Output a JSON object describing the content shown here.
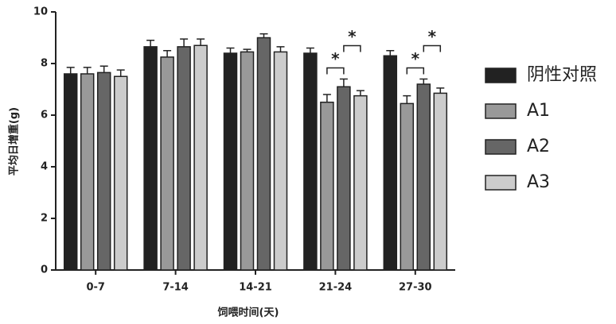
{
  "chart_data": {
    "type": "bar",
    "y_label": "平均日增重(g)",
    "x_label": "饲喂时间(天)",
    "categories": [
      "0-7",
      "7-14",
      "14-21",
      "21-24",
      "27-30"
    ],
    "series": [
      {
        "name": "阴性对照",
        "color": "#222222",
        "values": [
          7.6,
          8.65,
          8.4,
          8.4,
          8.3
        ],
        "errors": [
          0.25,
          0.25,
          0.2,
          0.2,
          0.2
        ]
      },
      {
        "name": "A1",
        "color": "#999999",
        "values": [
          7.6,
          8.25,
          8.45,
          6.5,
          6.45
        ],
        "errors": [
          0.25,
          0.25,
          0.1,
          0.3,
          0.3
        ]
      },
      {
        "name": "A2",
        "color": "#666666",
        "values": [
          7.65,
          8.65,
          9.0,
          7.1,
          7.2
        ],
        "errors": [
          0.25,
          0.3,
          0.15,
          0.3,
          0.2
        ]
      },
      {
        "name": "A3",
        "color": "#cccccc",
        "values": [
          7.5,
          8.7,
          8.45,
          6.75,
          6.85
        ],
        "errors": [
          0.25,
          0.25,
          0.2,
          0.2,
          0.2
        ]
      }
    ],
    "annotations": [
      {
        "text": "*",
        "category": "21-24",
        "from": "A1",
        "to": "A2"
      },
      {
        "text": "*",
        "category": "21-24",
        "from": "A2",
        "to": "A3"
      },
      {
        "text": "*",
        "category": "27-30",
        "from": "A1",
        "to": "A2"
      },
      {
        "text": "*",
        "category": "27-30",
        "from": "A2",
        "to": "A3"
      }
    ],
    "ylim": [
      0,
      10
    ],
    "yticks": [
      0,
      2,
      4,
      6,
      8,
      10
    ],
    "grid": false,
    "legend": "right"
  }
}
